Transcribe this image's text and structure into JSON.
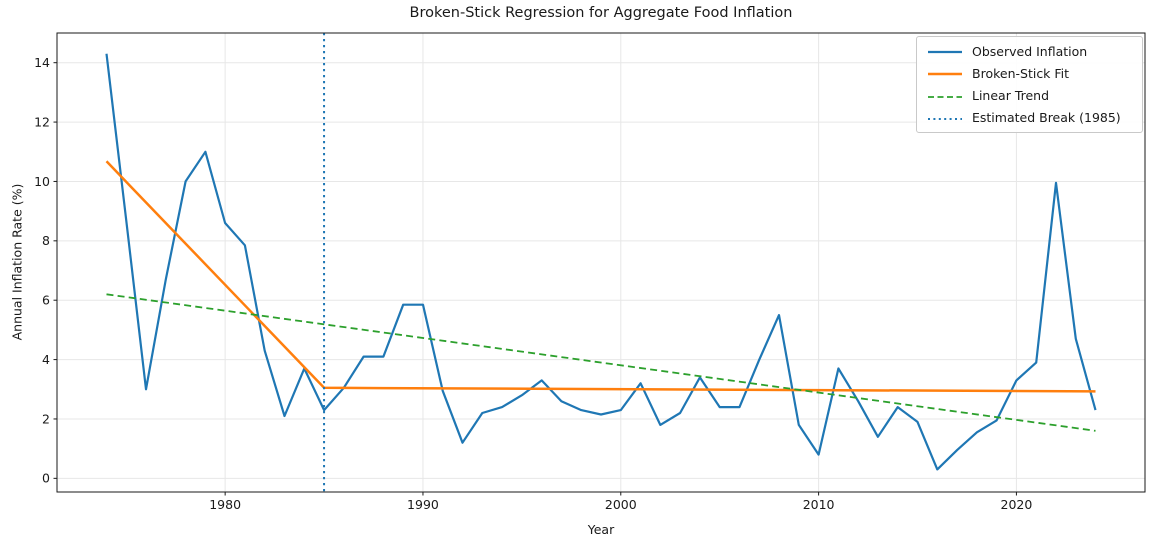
{
  "figure": {
    "background": "#ffffff",
    "text_color": "#1a1a1a",
    "grid_color": "#e7e7e7",
    "spine_color": "#1a1a1a"
  },
  "chart_data": {
    "type": "line",
    "title": "Broken-Stick Regression for Aggregate Food Inflation",
    "xlabel": "Year",
    "ylabel": "Annual Inflation Rate (%)",
    "xlim": [
      1971.5,
      2026.5
    ],
    "ylim": [
      -0.46,
      15.0
    ],
    "xticks": [
      1980,
      1990,
      2000,
      2010,
      2020
    ],
    "yticks": [
      0,
      2,
      4,
      6,
      8,
      10,
      12,
      14
    ],
    "grid": true,
    "legend_position": "upper right",
    "break_year": 1985,
    "x": [
      1974,
      1975,
      1976,
      1977,
      1978,
      1979,
      1980,
      1981,
      1982,
      1983,
      1984,
      1985,
      1986,
      1987,
      1988,
      1989,
      1990,
      1991,
      1992,
      1993,
      1994,
      1995,
      1996,
      1997,
      1998,
      1999,
      2000,
      2001,
      2002,
      2003,
      2004,
      2005,
      2006,
      2007,
      2008,
      2009,
      2010,
      2011,
      2012,
      2013,
      2014,
      2015,
      2016,
      2017,
      2018,
      2019,
      2020,
      2021,
      2022,
      2023,
      2024
    ],
    "series": [
      {
        "name": "Observed Inflation",
        "kind": "line",
        "color": "#1f77b4",
        "style": "solid",
        "width": 2.2,
        "values": [
          14.3,
          8.7,
          3.0,
          6.7,
          10.0,
          11.0,
          8.6,
          7.85,
          4.3,
          2.1,
          3.7,
          2.3,
          3.05,
          4.1,
          4.1,
          5.85,
          5.85,
          2.95,
          1.2,
          2.2,
          2.4,
          2.8,
          3.3,
          2.6,
          2.3,
          2.15,
          2.3,
          3.2,
          1.8,
          2.2,
          3.4,
          2.4,
          2.4,
          4.0,
          5.5,
          1.8,
          0.8,
          3.7,
          2.6,
          1.4,
          2.4,
          1.9,
          0.3,
          0.95,
          1.55,
          1.95,
          3.3,
          3.9,
          9.95,
          4.7,
          2.3
        ]
      },
      {
        "name": "Broken-Stick Fit",
        "kind": "line",
        "color": "#ff7f0e",
        "style": "solid",
        "width": 2.5,
        "x": [
          1974,
          1985,
          2024
        ],
        "values": [
          10.68,
          3.05,
          2.93
        ]
      },
      {
        "name": "Linear Trend",
        "kind": "line",
        "color": "#2ca02c",
        "style": "dashed",
        "width": 1.8,
        "x": [
          1974,
          2024
        ],
        "values": [
          6.2,
          1.6
        ]
      },
      {
        "name": "Estimated Break (1985)",
        "kind": "vline",
        "color": "#1f77b4",
        "style": "dotted",
        "width": 2.0,
        "vline_x": 1985
      }
    ]
  }
}
